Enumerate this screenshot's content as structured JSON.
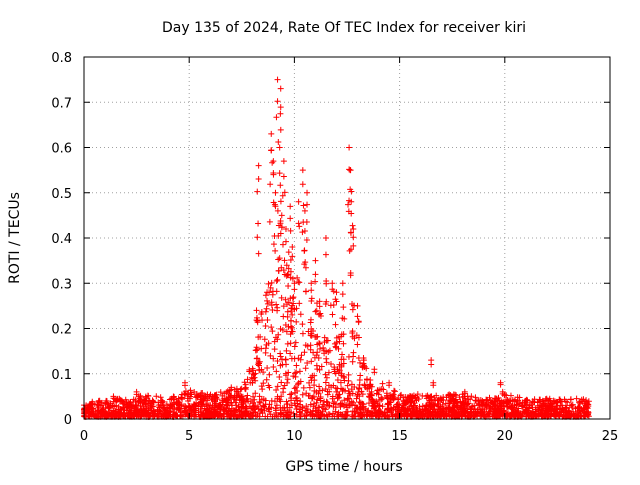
{
  "chart_data": {
    "type": "scatter",
    "title": "Day 135 of 2024, Rate Of TEC Index for receiver kiri",
    "xlabel": "GPS time / hours",
    "ylabel": "ROTI / TECUs",
    "xlim": [
      0,
      25
    ],
    "ylim": [
      0,
      0.8
    ],
    "x_ticks": [
      0,
      5,
      10,
      15,
      20,
      25
    ],
    "y_ticks": [
      0,
      0.1,
      0.2,
      0.3,
      0.4,
      0.5,
      0.6,
      0.7,
      0.8
    ],
    "grid": true,
    "marker": "+",
    "series": [
      {
        "name": "ROTI",
        "color": "#ff0000",
        "envelope": {
          "description": "upper envelope of the dense point cloud (hours, ROTI)",
          "x": [
            0,
            1,
            2,
            3,
            4,
            5,
            6,
            7,
            7.5,
            8,
            8.5,
            9,
            9.5,
            10,
            10.5,
            11,
            11.5,
            12,
            12.5,
            13,
            13.5,
            14,
            15,
            16,
            17,
            18,
            19,
            20,
            21,
            22,
            23,
            24
          ],
          "y": [
            0.03,
            0.04,
            0.04,
            0.05,
            0.04,
            0.06,
            0.05,
            0.06,
            0.07,
            0.12,
            0.25,
            0.35,
            0.35,
            0.3,
            0.25,
            0.2,
            0.18,
            0.17,
            0.2,
            0.18,
            0.1,
            0.08,
            0.05,
            0.05,
            0.05,
            0.05,
            0.04,
            0.05,
            0.04,
            0.04,
            0.04,
            0.04
          ]
        },
        "peaks": {
          "x": [
            0.1,
            0.7,
            1.4,
            2.5,
            3.7,
            4.8,
            5.7,
            6.2,
            7.0,
            8.2,
            8.3,
            8.7,
            8.9,
            9.0,
            9.1,
            9.2,
            9.3,
            9.35,
            9.4,
            9.5,
            9.6,
            9.7,
            9.8,
            9.9,
            10.0,
            10.2,
            10.4,
            10.5,
            10.6,
            10.8,
            11.0,
            11.2,
            11.5,
            11.8,
            12.0,
            12.3,
            12.6,
            12.65,
            12.7,
            12.8,
            13.0,
            13.3,
            13.8,
            14.5,
            16.5,
            16.6,
            18.1,
            19.8,
            19.9
          ],
          "y": [
            0.03,
            0.04,
            0.05,
            0.06,
            0.04,
            0.08,
            0.05,
            0.04,
            0.07,
            0.24,
            0.56,
            0.28,
            0.63,
            0.57,
            0.5,
            0.75,
            0.6,
            0.73,
            0.45,
            0.57,
            0.42,
            0.32,
            0.47,
            0.38,
            0.3,
            0.48,
            0.55,
            0.46,
            0.5,
            0.3,
            0.35,
            0.26,
            0.4,
            0.3,
            0.28,
            0.3,
            0.6,
            0.55,
            0.48,
            0.42,
            0.25,
            0.13,
            0.11,
            0.08,
            0.13,
            0.08,
            0.06,
            0.08,
            0.06
          ]
        }
      }
    ]
  }
}
